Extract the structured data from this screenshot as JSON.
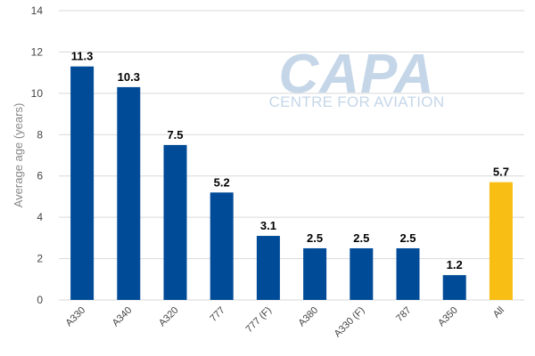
{
  "watermark": {
    "logo_text": "CAPA",
    "subtitle": "CENTRE FOR AVIATION",
    "color": "#c5d6e8"
  },
  "chart_data": {
    "type": "bar",
    "title": "",
    "xlabel": "",
    "ylabel": "Average age (years)",
    "ylim": [
      0,
      14
    ],
    "yticks": [
      0,
      2,
      4,
      6,
      8,
      10,
      12,
      14
    ],
    "grid": true,
    "categories": [
      "A330",
      "A340",
      "A320",
      "777",
      "777 (F)",
      "A380",
      "A330 (F)",
      "787",
      "A350",
      "All"
    ],
    "values": [
      11.3,
      10.3,
      7.5,
      5.2,
      3.1,
      2.5,
      2.5,
      2.5,
      1.2,
      5.7
    ],
    "value_labels": [
      "11.3",
      "10.3",
      "7.5",
      "5.2",
      "3.1",
      "2.5",
      "2.5",
      "2.5",
      "1.2",
      "5.7"
    ],
    "colors": {
      "default": "#004b98",
      "highlight": "#f8be14",
      "highlight_category": "All",
      "gridline": "#d9d9d9",
      "axis_text": "#444444",
      "ylabel": "#888888"
    }
  }
}
